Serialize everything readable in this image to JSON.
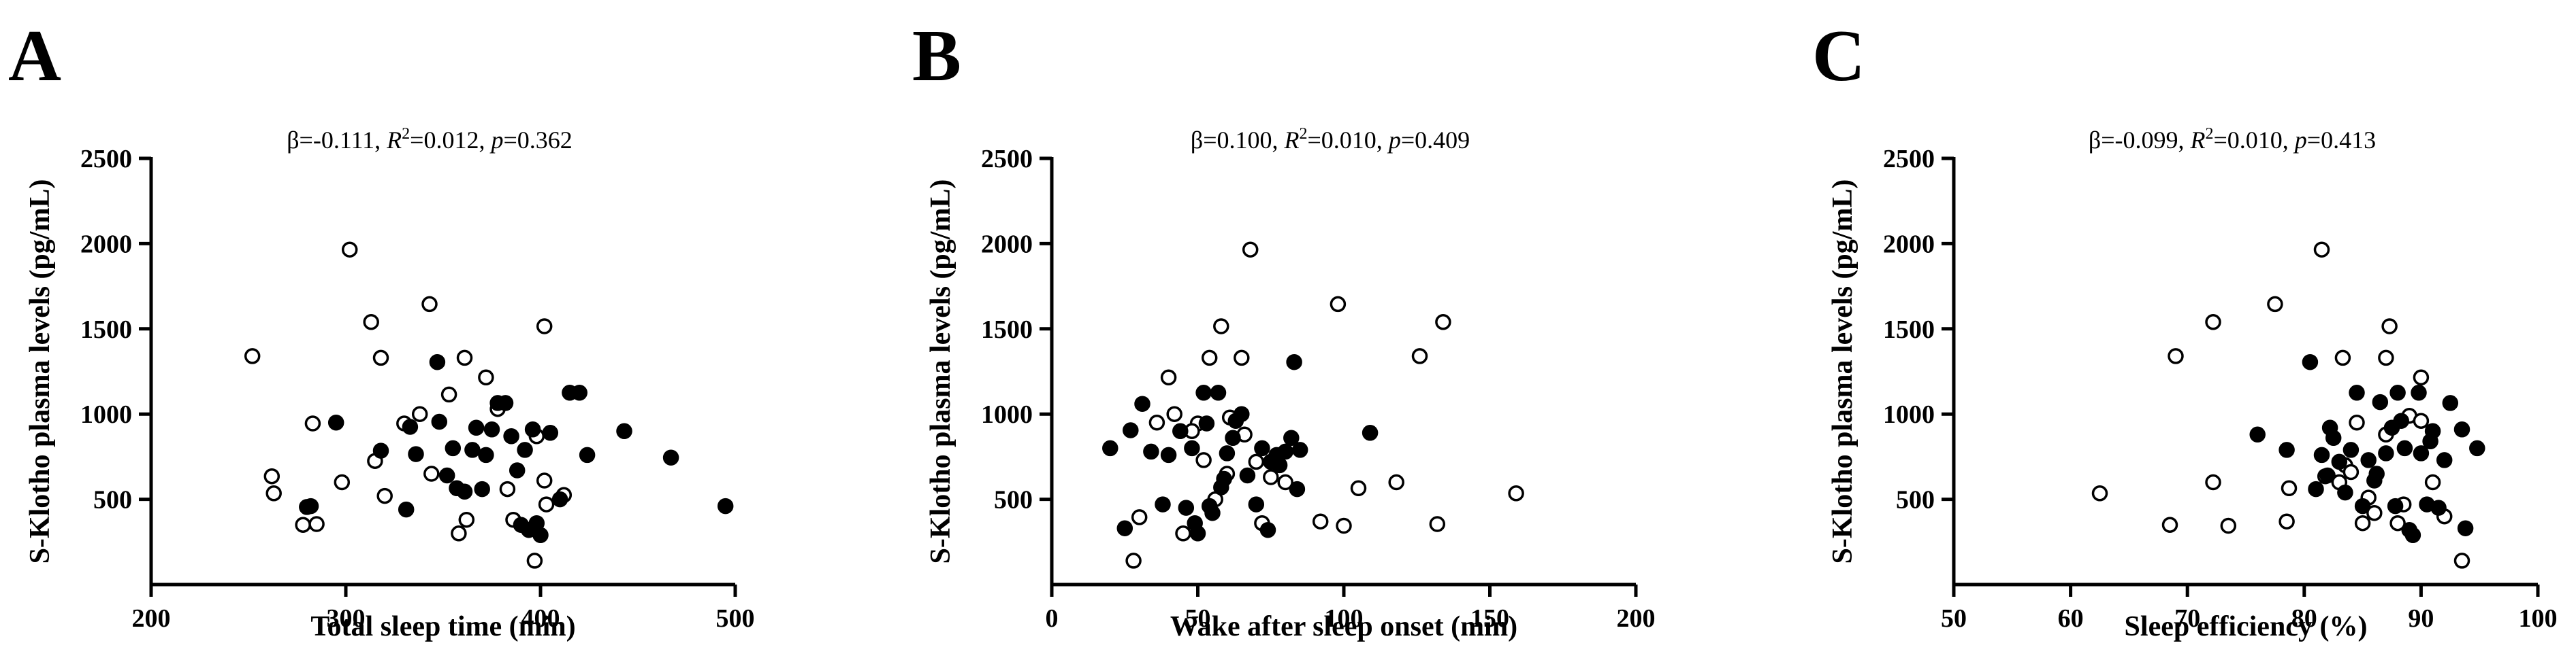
{
  "figure": {
    "panels": [
      "A",
      "B",
      "C"
    ]
  },
  "chart_data": [
    {
      "type": "scatter",
      "panel_label": "A",
      "title": "",
      "xlabel": "Total sleep time (min)",
      "ylabel": "S-Klotho plasma levels (pg/mL)",
      "xlim": [
        200,
        500
      ],
      "ylim": [
        0,
        2500
      ],
      "xticks": [
        "200",
        "300",
        "400",
        "500"
      ],
      "yticks": [
        "500",
        "1000",
        "1500",
        "2000",
        "2500"
      ],
      "stat": {
        "beta": "β=-0.111, ",
        "r2_label": "R",
        "r2_sup": "2",
        "r2_value": "=0.012, ",
        "p_label": "p",
        "p_value": "=0.362"
      },
      "series": [
        {
          "name": "open",
          "filled": false,
          "points": [
            [
              252,
              1340
            ],
            [
              302,
              1965
            ],
            [
              313,
              1540
            ],
            [
              318,
              1330
            ],
            [
              343,
              1645
            ],
            [
              361,
              1330
            ],
            [
              372,
              1215
            ],
            [
              402,
              1515
            ],
            [
              262,
              635
            ],
            [
              263,
              535
            ],
            [
              283,
              945
            ],
            [
              298,
              600
            ],
            [
              315,
              725
            ],
            [
              320,
              520
            ],
            [
              330,
              945
            ],
            [
              338,
              1000
            ],
            [
              344,
              650
            ],
            [
              353,
              1115
            ],
            [
              358,
              300
            ],
            [
              362,
              380
            ],
            [
              378,
              1030
            ],
            [
              383,
              560
            ],
            [
              386,
              380
            ],
            [
              398,
              870
            ],
            [
              402,
              610
            ],
            [
              403,
              470
            ],
            [
              412,
              525
            ],
            [
              397,
              140
            ],
            [
              278,
              350
            ],
            [
              285,
              355
            ]
          ]
        },
        {
          "name": "filled",
          "filled": true,
          "points": [
            [
              282,
              460
            ],
            [
              295,
              950
            ],
            [
              318,
              785
            ],
            [
              331,
              440
            ],
            [
              333,
              925
            ],
            [
              336,
              765
            ],
            [
              347,
              1305
            ],
            [
              348,
              955
            ],
            [
              352,
              640
            ],
            [
              355,
              800
            ],
            [
              357,
              565
            ],
            [
              361,
              545
            ],
            [
              365,
              790
            ],
            [
              367,
              920
            ],
            [
              370,
              560
            ],
            [
              372,
              760
            ],
            [
              375,
              910
            ],
            [
              378,
              1065
            ],
            [
              382,
              1065
            ],
            [
              385,
              870
            ],
            [
              388,
              670
            ],
            [
              390,
              350
            ],
            [
              392,
              790
            ],
            [
              394,
              320
            ],
            [
              396,
              910
            ],
            [
              398,
              360
            ],
            [
              400,
              290
            ],
            [
              405,
              890
            ],
            [
              410,
              500
            ],
            [
              415,
              1125
            ],
            [
              420,
              1125
            ],
            [
              424,
              760
            ],
            [
              443,
              900
            ],
            [
              467,
              745
            ],
            [
              495,
              460
            ],
            [
              280,
              455
            ]
          ]
        }
      ]
    },
    {
      "type": "scatter",
      "panel_label": "B",
      "title": "",
      "xlabel": "Wake after sleep onset (min)",
      "ylabel": "S-Klotho plasma levels (pg/mL)",
      "xlim": [
        0,
        200
      ],
      "ylim": [
        0,
        2500
      ],
      "xticks": [
        "0",
        "50",
        "100",
        "150",
        "200"
      ],
      "yticks": [
        "500",
        "1000",
        "1500",
        "2000",
        "2500"
      ],
      "stat": {
        "beta": "β=0.100, ",
        "r2_label": "R",
        "r2_sup": "2",
        "r2_value": "=0.010, ",
        "p_label": "p",
        "p_value": "=0.409"
      },
      "series": [
        {
          "name": "open",
          "filled": false,
          "points": [
            [
              68,
              1965
            ],
            [
              98,
              1645
            ],
            [
              134,
              1540
            ],
            [
              126,
              1340
            ],
            [
              58,
              1515
            ],
            [
              54,
              1330
            ],
            [
              65,
              1330
            ],
            [
              40,
              1215
            ],
            [
              30,
              395
            ],
            [
              36,
              950
            ],
            [
              42,
              1000
            ],
            [
              45,
              300
            ],
            [
              50,
              945
            ],
            [
              56,
              500
            ],
            [
              60,
              650
            ],
            [
              66,
              880
            ],
            [
              70,
              720
            ],
            [
              72,
              360
            ],
            [
              75,
              630
            ],
            [
              80,
              600
            ],
            [
              92,
              370
            ],
            [
              100,
              345
            ],
            [
              105,
              565
            ],
            [
              118,
              600
            ],
            [
              132,
              355
            ],
            [
              159,
              535
            ],
            [
              28,
              140
            ],
            [
              52,
              730
            ],
            [
              61,
              980
            ],
            [
              48,
              900
            ]
          ]
        },
        {
          "name": "filled",
          "filled": true,
          "points": [
            [
              20,
              800
            ],
            [
              25,
              330
            ],
            [
              27,
              905
            ],
            [
              31,
              1060
            ],
            [
              34,
              780
            ],
            [
              38,
              470
            ],
            [
              40,
              760
            ],
            [
              44,
              900
            ],
            [
              46,
              450
            ],
            [
              48,
              800
            ],
            [
              49,
              360
            ],
            [
              50,
              300
            ],
            [
              52,
              1125
            ],
            [
              53,
              945
            ],
            [
              55,
              420
            ],
            [
              57,
              1125
            ],
            [
              58,
              570
            ],
            [
              60,
              770
            ],
            [
              62,
              860
            ],
            [
              63,
              960
            ],
            [
              65,
              1000
            ],
            [
              67,
              640
            ],
            [
              70,
              470
            ],
            [
              72,
              800
            ],
            [
              74,
              320
            ],
            [
              75,
              720
            ],
            [
              77,
              760
            ],
            [
              78,
              700
            ],
            [
              80,
              780
            ],
            [
              82,
              860
            ],
            [
              83,
              1305
            ],
            [
              84,
              560
            ],
            [
              85,
              790
            ],
            [
              109,
              890
            ],
            [
              54,
              460
            ],
            [
              59,
              620
            ]
          ]
        }
      ]
    },
    {
      "type": "scatter",
      "panel_label": "C",
      "title": "",
      "xlabel": "Sleep efficiency (%)",
      "ylabel": "S-Klotho plasma levels (pg/mL)",
      "xlim": [
        50,
        100
      ],
      "ylim": [
        0,
        2500
      ],
      "xticks": [
        "50",
        "60",
        "70",
        "80",
        "90",
        "100"
      ],
      "yticks": [
        "500",
        "1000",
        "1500",
        "2000",
        "2500"
      ],
      "stat": {
        "beta": "β=-0.099, ",
        "r2_label": "R",
        "r2_sup": "2",
        "r2_value": "=0.010, ",
        "p_label": "p",
        "p_value": "=0.413"
      },
      "series": [
        {
          "name": "open",
          "filled": false,
          "points": [
            [
              81.5,
              1965
            ],
            [
              77.5,
              1645
            ],
            [
              72.2,
              1540
            ],
            [
              87.3,
              1515
            ],
            [
              69,
              1340
            ],
            [
              83.3,
              1330
            ],
            [
              87,
              1330
            ],
            [
              90,
              1215
            ],
            [
              62.5,
              535
            ],
            [
              68.5,
              350
            ],
            [
              72.2,
              600
            ],
            [
              73.5,
              345
            ],
            [
              78.5,
              370
            ],
            [
              78.7,
              565
            ],
            [
              81.8,
              635
            ],
            [
              83,
              600
            ],
            [
              83.5,
              700
            ],
            [
              84.5,
              950
            ],
            [
              85,
              360
            ],
            [
              85.5,
              510
            ],
            [
              86,
              420
            ],
            [
              87,
              880
            ],
            [
              88,
              360
            ],
            [
              88.5,
              470
            ],
            [
              89,
              990
            ],
            [
              90,
              960
            ],
            [
              91,
              600
            ],
            [
              92,
              400
            ],
            [
              93.5,
              140
            ],
            [
              84,
              660
            ]
          ]
        },
        {
          "name": "filled",
          "filled": true,
          "points": [
            [
              76,
              880
            ],
            [
              78.5,
              790
            ],
            [
              80.5,
              1305
            ],
            [
              81,
              560
            ],
            [
              81.5,
              760
            ],
            [
              82,
              640
            ],
            [
              82.5,
              860
            ],
            [
              83,
              720
            ],
            [
              83.5,
              540
            ],
            [
              84,
              790
            ],
            [
              84.5,
              1125
            ],
            [
              85,
              460
            ],
            [
              85.5,
              730
            ],
            [
              86,
              610
            ],
            [
              86.5,
              1070
            ],
            [
              87,
              770
            ],
            [
              87.5,
              920
            ],
            [
              87.8,
              460
            ],
            [
              88,
              1125
            ],
            [
              88.3,
              960
            ],
            [
              88.6,
              800
            ],
            [
              89,
              320
            ],
            [
              89.3,
              290
            ],
            [
              89.8,
              1125
            ],
            [
              90,
              770
            ],
            [
              90.5,
              470
            ],
            [
              91,
              900
            ],
            [
              91.5,
              450
            ],
            [
              92,
              730
            ],
            [
              92.5,
              1065
            ],
            [
              93.5,
              910
            ],
            [
              93.8,
              330
            ],
            [
              94.8,
              800
            ],
            [
              82.2,
              920
            ],
            [
              86.2,
              650
            ],
            [
              90.8,
              840
            ]
          ]
        }
      ]
    }
  ]
}
